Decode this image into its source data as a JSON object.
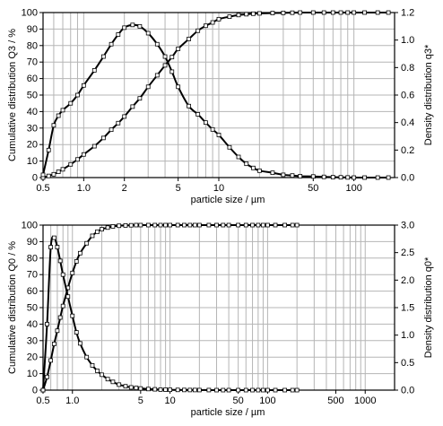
{
  "chart_data": [
    {
      "type": "line",
      "x_scale": "log",
      "xlim": [
        0.5,
        200
      ],
      "ylim": [
        0,
        100
      ],
      "y2lim": [
        0,
        1.2
      ],
      "xlabel": "particle size / µm",
      "ylabel": "Cumulative distribution Q3 / %",
      "y2label": "Density distribution q3*",
      "x_ticks": [
        "0.5",
        "1.0",
        "2",
        "5",
        "10",
        "50",
        "100"
      ],
      "y_ticks": [
        "0",
        "10",
        "20",
        "30",
        "40",
        "50",
        "60",
        "70",
        "80",
        "90",
        "100"
      ],
      "y2_ticks": [
        "0.0",
        "0.2",
        "0.4",
        "0.6",
        "0.8",
        "1.0",
        "1.2"
      ],
      "grid": true,
      "marker": "open-square",
      "series": [
        {
          "axis": "left",
          "x": [
            0.5,
            0.55,
            0.6,
            0.65,
            0.7,
            0.8,
            0.9,
            1.0,
            1.2,
            1.4,
            1.6,
            1.8,
            2.0,
            2.3,
            2.6,
            3.0,
            3.5,
            4.0,
            4.5,
            5.0,
            6.0,
            7.0,
            8.0,
            9.0,
            10,
            12,
            14,
            16,
            18,
            20,
            25,
            30,
            35,
            40,
            50,
            60,
            70,
            80,
            90,
            100,
            120,
            150,
            180
          ],
          "y": [
            0,
            1,
            2,
            3.5,
            5,
            8,
            11,
            14,
            19,
            24,
            29,
            33,
            37,
            43,
            48,
            55,
            62,
            68,
            73,
            78,
            84,
            89,
            92,
            94,
            96,
            97.5,
            98.5,
            99,
            99.3,
            99.5,
            99.7,
            99.8,
            99.9,
            100,
            100,
            100,
            100,
            100,
            100,
            100,
            100,
            100,
            100
          ]
        },
        {
          "axis": "right",
          "x": [
            0.5,
            0.55,
            0.6,
            0.65,
            0.7,
            0.8,
            0.9,
            1.0,
            1.2,
            1.4,
            1.6,
            1.8,
            2.0,
            2.3,
            2.6,
            3.0,
            3.5,
            4.0,
            4.5,
            5.0,
            6.0,
            7.0,
            8.0,
            9.0,
            10,
            12,
            14,
            16,
            18,
            20,
            25,
            30,
            35,
            40,
            50,
            60,
            70,
            80,
            90,
            100,
            120,
            150,
            180
          ],
          "y": [
            0.02,
            0.2,
            0.38,
            0.45,
            0.49,
            0.54,
            0.6,
            0.67,
            0.78,
            0.88,
            0.97,
            1.04,
            1.09,
            1.11,
            1.1,
            1.05,
            0.97,
            0.88,
            0.77,
            0.66,
            0.52,
            0.46,
            0.4,
            0.35,
            0.31,
            0.22,
            0.15,
            0.1,
            0.07,
            0.05,
            0.035,
            0.02,
            0.015,
            0.01,
            0.008,
            0.005,
            0.003,
            0.002,
            0.001,
            0.0,
            0.0,
            0.0,
            0.0
          ]
        }
      ]
    },
    {
      "type": "line",
      "x_scale": "log",
      "xlim": [
        0.5,
        2000
      ],
      "ylim": [
        0,
        100
      ],
      "y2lim": [
        0,
        3
      ],
      "xlabel": "particle size / µm",
      "ylabel": "Cumulative distribution Q0 / %",
      "y2label": "Density distribution q0*",
      "x_ticks": [
        "0.5",
        "1.0",
        "5",
        "10",
        "50",
        "100",
        "500",
        "1000"
      ],
      "y_ticks": [
        "0",
        "10",
        "20",
        "30",
        "40",
        "50",
        "60",
        "70",
        "80",
        "90",
        "100"
      ],
      "y2_ticks": [
        "0.0",
        "0.5",
        "1.0",
        "1.5",
        "2.0",
        "2.5",
        "3.0"
      ],
      "grid": true,
      "marker": "open-square",
      "series": [
        {
          "axis": "left",
          "x": [
            0.5,
            0.55,
            0.6,
            0.65,
            0.7,
            0.75,
            0.8,
            0.9,
            1.0,
            1.1,
            1.2,
            1.4,
            1.6,
            1.8,
            2.0,
            2.3,
            2.6,
            3.0,
            3.5,
            4.0,
            4.5,
            5.0,
            6.0,
            7.0,
            8.0,
            9.0,
            10,
            12,
            14,
            16,
            18,
            20,
            25,
            30,
            35,
            40,
            50,
            60,
            70,
            80,
            90,
            100,
            120,
            150,
            180,
            200
          ],
          "y": [
            0,
            8,
            18,
            28,
            36,
            44,
            51,
            62,
            71,
            78,
            83,
            89,
            93.5,
            96,
            97.5,
            98.5,
            99.2,
            99.6,
            99.8,
            99.9,
            100,
            100,
            100,
            100,
            100,
            100,
            100,
            100,
            100,
            100,
            100,
            100,
            100,
            100,
            100,
            100,
            100,
            100,
            100,
            100,
            100,
            100,
            100,
            100,
            100,
            100
          ]
        },
        {
          "axis": "right",
          "x": [
            0.5,
            0.55,
            0.6,
            0.65,
            0.7,
            0.75,
            0.8,
            0.9,
            1.0,
            1.1,
            1.2,
            1.4,
            1.6,
            1.8,
            2.0,
            2.3,
            2.6,
            3.0,
            3.5,
            4.0,
            4.5,
            5.0,
            6.0,
            7.0,
            8.0,
            9.0,
            10,
            12,
            14,
            16,
            18,
            20,
            25,
            30,
            35,
            40,
            50,
            60,
            70,
            80,
            90,
            100,
            120,
            150,
            180,
            200
          ],
          "y": [
            0.0,
            1.2,
            2.6,
            2.77,
            2.6,
            2.35,
            2.1,
            1.7,
            1.35,
            1.05,
            0.85,
            0.6,
            0.45,
            0.35,
            0.28,
            0.2,
            0.15,
            0.1,
            0.07,
            0.05,
            0.04,
            0.03,
            0.02,
            0.015,
            0.01,
            0.008,
            0.006,
            0.004,
            0.003,
            0.002,
            0.002,
            0.001,
            0.001,
            0.0,
            0.0,
            0.0,
            0.0,
            0.0,
            0.0,
            0.0,
            0.0,
            0.0,
            0.0,
            0.0,
            0.0,
            0.0
          ]
        }
      ]
    }
  ]
}
